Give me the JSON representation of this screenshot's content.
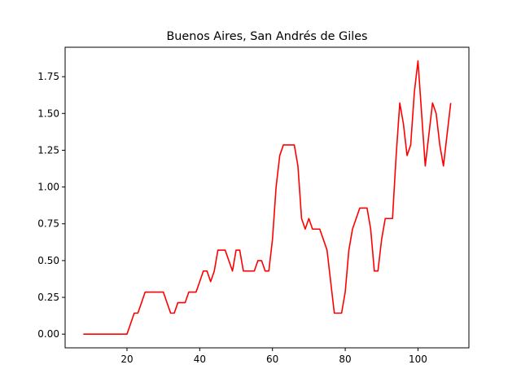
{
  "chart_data": {
    "type": "line",
    "title": "Buenos Aires, San Andrés de Giles",
    "xlabel": "",
    "ylabel": "",
    "xlim": [
      3,
      114
    ],
    "ylim": [
      -0.093,
      1.95
    ],
    "xticks": [
      20,
      40,
      60,
      80,
      100
    ],
    "yticks": [
      0.0,
      0.25,
      0.5,
      0.75,
      1.0,
      1.25,
      1.5,
      1.75
    ],
    "xtick_labels": [
      "20",
      "40",
      "60",
      "80",
      "100"
    ],
    "ytick_labels": [
      "0.00",
      "0.25",
      "0.50",
      "0.75",
      "1.00",
      "1.25",
      "1.50",
      "1.75"
    ],
    "grid": false,
    "series": [
      {
        "color": "#ff0000",
        "x": [
          8,
          9,
          10,
          11,
          12,
          13,
          14,
          15,
          16,
          17,
          18,
          19,
          20,
          21,
          22,
          23,
          24,
          25,
          26,
          27,
          28,
          29,
          30,
          31,
          32,
          33,
          34,
          35,
          36,
          37,
          38,
          39,
          40,
          41,
          42,
          43,
          44,
          45,
          46,
          47,
          48,
          49,
          50,
          51,
          52,
          53,
          54,
          55,
          56,
          57,
          58,
          59,
          60,
          61,
          62,
          63,
          64,
          65,
          66,
          67,
          68,
          69,
          70,
          71,
          72,
          73,
          74,
          75,
          76,
          77,
          78,
          79,
          80,
          81,
          82,
          83,
          84,
          85,
          86,
          87,
          88,
          89,
          90,
          91,
          92,
          93,
          94,
          95,
          96,
          97,
          98,
          99,
          100,
          101,
          102,
          103,
          104,
          105,
          106,
          107,
          108,
          109
        ],
        "y": [
          0,
          0,
          0,
          0,
          0,
          0,
          0,
          0,
          0,
          0,
          0,
          0,
          0,
          0.071,
          0.143,
          0.143,
          0.214,
          0.286,
          0.286,
          0.286,
          0.286,
          0.286,
          0.286,
          0.214,
          0.143,
          0.143,
          0.214,
          0.214,
          0.214,
          0.286,
          0.286,
          0.286,
          0.357,
          0.429,
          0.429,
          0.357,
          0.429,
          0.571,
          0.571,
          0.571,
          0.5,
          0.429,
          0.571,
          0.571,
          0.429,
          0.429,
          0.429,
          0.429,
          0.5,
          0.5,
          0.429,
          0.429,
          0.643,
          1.0,
          1.214,
          1.286,
          1.286,
          1.286,
          1.286,
          1.143,
          0.786,
          0.714,
          0.786,
          0.714,
          0.714,
          0.714,
          0.643,
          0.571,
          0.357,
          0.143,
          0.143,
          0.143,
          0.286,
          0.571,
          0.714,
          0.786,
          0.857,
          0.857,
          0.857,
          0.714,
          0.429,
          0.429,
          0.643,
          0.786,
          0.786,
          0.786,
          1.214,
          1.571,
          1.429,
          1.214,
          1.286,
          1.643,
          1.857,
          1.5,
          1.143,
          1.357,
          1.571,
          1.5,
          1.286,
          1.143,
          1.357,
          1.571
        ]
      }
    ]
  }
}
